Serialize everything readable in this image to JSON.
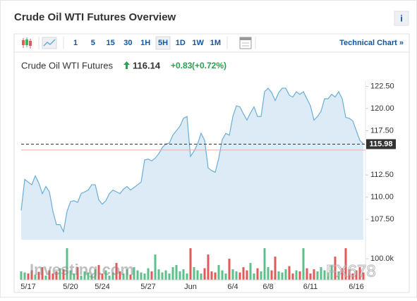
{
  "header": {
    "title": "Crude Oil WTI Futures Overview",
    "info": "i"
  },
  "toolbar": {
    "intervals": [
      "1",
      "5",
      "15",
      "30",
      "1H",
      "5H",
      "1D",
      "1W",
      "1M"
    ],
    "active": "5H",
    "link": "Technical Chart »"
  },
  "quote": {
    "name": "Crude Oil WTI Futures",
    "last": 116.14,
    "change": "+0.83",
    "change_percent": "(+0.72%)"
  },
  "watermarks": [
    "Investing.com",
    "FX678"
  ],
  "chart_data": [
    {
      "type": "area",
      "color": "#6aaed6",
      "fill": "#dcebf5",
      "categories": [
        null,
        null,
        "5/17",
        null,
        null,
        null,
        null,
        null,
        null,
        null,
        null,
        null,
        null,
        null,
        "5/20",
        null,
        null,
        null,
        null,
        null,
        null,
        null,
        null,
        "5/24",
        null,
        null,
        null,
        null,
        null,
        null,
        null,
        null,
        null,
        null,
        null,
        null,
        "5/27",
        null,
        null,
        null,
        null,
        null,
        null,
        null,
        null,
        null,
        null,
        null,
        "Jun",
        null,
        null,
        null,
        null,
        null,
        null,
        null,
        null,
        null,
        null,
        null,
        "6/4",
        null,
        null,
        null,
        null,
        null,
        null,
        null,
        null,
        null,
        "6/8",
        null,
        null,
        null,
        null,
        null,
        null,
        null,
        null,
        null,
        null,
        null,
        "6/11",
        null,
        null,
        null,
        null,
        null,
        null,
        null,
        null,
        null,
        null,
        null,
        null,
        "6/16",
        null,
        null
      ],
      "values": [
        108.5,
        112.0,
        111.7,
        111.4,
        112.4,
        111.6,
        110.4,
        111.2,
        110.6,
        108.4,
        106.9,
        106.9,
        106.1,
        108.4,
        109.5,
        109.6,
        109.4,
        110.4,
        110.6,
        110.8,
        111.4,
        111.4,
        109.7,
        109.2,
        109.6,
        110.4,
        110.8,
        110.6,
        110.4,
        110.9,
        111.2,
        110.8,
        111.1,
        111.4,
        111.7,
        114.2,
        114.3,
        114.1,
        114.4,
        114.9,
        115.6,
        116.0,
        116.1,
        117.0,
        117.5,
        118.0,
        118.9,
        119.1,
        114.6,
        115.2,
        116.0,
        117.2,
        116.4,
        113.3,
        113.0,
        112.8,
        114.4,
        116.5,
        117.2,
        117.0,
        119.1,
        120.3,
        120.2,
        119.4,
        118.7,
        119.5,
        120.2,
        119.1,
        119.1,
        121.9,
        122.3,
        121.8,
        120.9,
        121.8,
        122.3,
        122.3,
        121.5,
        121.3,
        121.9,
        121.6,
        121.9,
        121.1,
        120.3,
        118.7,
        119.1,
        119.7,
        121.1,
        121.1,
        121.6,
        121.3,
        121.9,
        121.1,
        119.0,
        118.9,
        118.6,
        117.5,
        116.4,
        116.0
      ],
      "ylim": [
        105.2,
        123.1
      ],
      "yticks": [
        {
          "value": 107.5,
          "label": "107.50"
        },
        {
          "value": 110,
          "label": "110.00"
        },
        {
          "value": 112.5,
          "label": "112.50"
        },
        {
          "value": 117.5,
          "label": "117.50"
        },
        {
          "value": 120,
          "label": "120.00"
        },
        {
          "value": 122.5,
          "label": "122.50"
        }
      ],
      "current": 115.98,
      "current_color": "#333333",
      "previous_close": 115.31,
      "previous_close_color": "#f4a6a6"
    },
    {
      "type": "bar",
      "up_color": "#5cc08a",
      "down_color": "#e05a5a",
      "values": [
        40000,
        35000,
        30000,
        45000,
        25000,
        38000,
        60000,
        20000,
        45000,
        30000,
        40000,
        55000,
        50000,
        150000,
        45000,
        30000,
        60000,
        20000,
        40000,
        35000,
        25000,
        50000,
        70000,
        30000,
        45000,
        20000,
        35000,
        80000,
        40000,
        30000,
        50000,
        25000,
        60000,
        45000,
        35000,
        30000,
        55000,
        40000,
        120000,
        50000,
        35000,
        45000,
        30000,
        60000,
        70000,
        40000,
        50000,
        30000,
        150000,
        60000,
        45000,
        30000,
        55000,
        120000,
        40000,
        35000,
        70000,
        45000,
        30000,
        100000,
        50000,
        40000,
        35000,
        60000,
        45000,
        80000,
        30000,
        55000,
        40000,
        150000,
        60000,
        45000,
        110000,
        40000,
        35000,
        50000,
        65000,
        30000,
        45000,
        40000,
        150000,
        55000,
        30000,
        50000,
        40000,
        60000,
        45000,
        35000,
        70000,
        110000,
        40000,
        55000,
        150000,
        50000,
        30000,
        45000,
        60000,
        35000
      ],
      "ylim": [
        0,
        157000
      ],
      "yticks": [
        {
          "value": 100000,
          "label": "100.0k"
        }
      ]
    }
  ]
}
